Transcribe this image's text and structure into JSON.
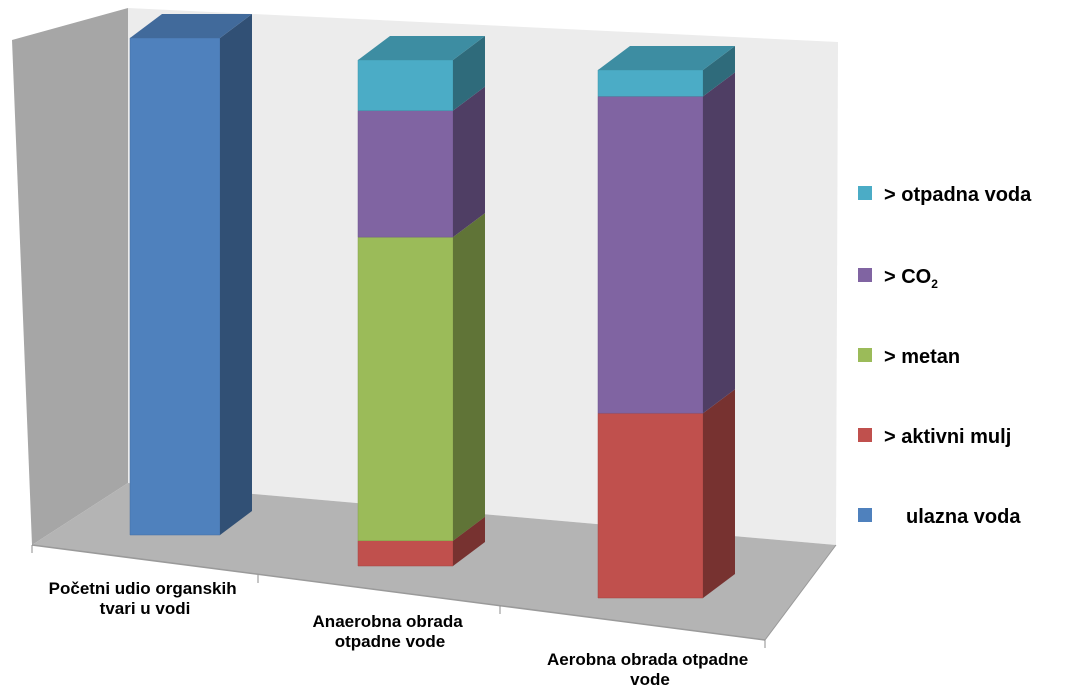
{
  "chart_data": {
    "type": "bar",
    "stacked": true,
    "style": "3d-column",
    "grid": false,
    "legend_position": "right",
    "categories": [
      [
        "Početni udio organskih",
        "tvari u vodi"
      ],
      [
        "Anaerobna obrada",
        "otpadne vode"
      ],
      [
        "Aerobna obrada otpadne",
        "vode"
      ]
    ],
    "series": [
      {
        "name": "ulazna voda",
        "label": "ulazna voda",
        "color": "#4F81BD",
        "values": [
          100,
          0,
          0
        ]
      },
      {
        "name": "aktivni mulj",
        "label": "> aktivni mulj",
        "color": "#C0504D",
        "values": [
          0,
          5,
          35
        ]
      },
      {
        "name": "metan",
        "label": "> metan",
        "color": "#9BBB59",
        "values": [
          0,
          60,
          0
        ]
      },
      {
        "name": "CO2",
        "label": "> CO",
        "label_sub": "2",
        "color": "#8064A2",
        "values": [
          0,
          25,
          60
        ]
      },
      {
        "name": "otpadna voda",
        "label": "> otpadna voda",
        "color": "#4BACC6",
        "values": [
          0,
          10,
          5
        ]
      }
    ],
    "ylim": [
      0,
      100
    ],
    "legend_order": [
      "otpadna voda",
      "CO2",
      "metan",
      "aktivni mulj",
      "ulazna voda"
    ]
  }
}
